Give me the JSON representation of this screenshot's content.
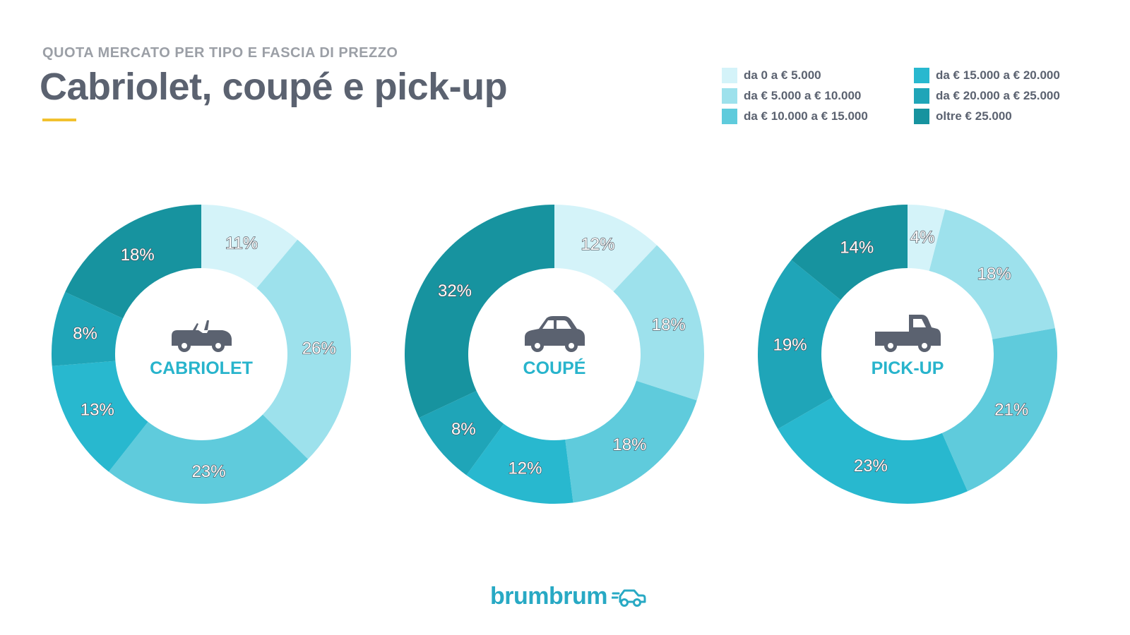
{
  "header": {
    "subtitle": "QUOTA MERCATO PER TIPO E FASCIA DI PREZZO",
    "title": "Cabriolet, coupé e pick-up"
  },
  "legend": [
    {
      "label": "da 0 a € 5.000",
      "color": "#d4f3f9"
    },
    {
      "label": "da € 5.000 a € 10.000",
      "color": "#9de1ec"
    },
    {
      "label": "da € 10.000 a € 15.000",
      "color": "#5fcbdc"
    },
    {
      "label": "da € 15.000 a € 20.000",
      "color": "#28b8cf"
    },
    {
      "label": "da € 20.000 a € 25.000",
      "color": "#1fa5b8"
    },
    {
      "label": "oltre € 25.000",
      "color": "#17939f"
    }
  ],
  "chart_data": [
    {
      "type": "pie",
      "title": "CABRIOLET",
      "icon": "convertible-car-icon",
      "categories": [
        "da 0 a € 5.000",
        "da € 5.000 a € 10.000",
        "da € 10.000 a € 15.000",
        "da € 15.000 a € 20.000",
        "da € 20.000 a € 25.000",
        "oltre € 25.000"
      ],
      "values": [
        11,
        26,
        23,
        13,
        8,
        18
      ],
      "labels": [
        "11%",
        "26%",
        "23%",
        "13%",
        "8%",
        "18%"
      ]
    },
    {
      "type": "pie",
      "title": "COUPÉ",
      "icon": "coupe-car-icon",
      "categories": [
        "da 0 a € 5.000",
        "da € 5.000 a € 10.000",
        "da € 10.000 a € 15.000",
        "da € 15.000 a € 20.000",
        "da € 20.000 a € 25.000",
        "oltre € 25.000"
      ],
      "values": [
        12,
        18,
        18,
        12,
        8,
        32
      ],
      "labels": [
        "12%",
        "18%",
        "18%",
        "12%",
        "8%",
        "32%"
      ]
    },
    {
      "type": "pie",
      "title": "PICK-UP",
      "icon": "pickup-truck-icon",
      "categories": [
        "da 0 a € 5.000",
        "da € 5.000 a € 10.000",
        "da € 10.000 a € 15.000",
        "da € 15.000 a € 20.000",
        "da € 20.000 a € 25.000",
        "oltre € 25.000"
      ],
      "values": [
        4,
        18,
        21,
        23,
        19,
        14
      ],
      "labels": [
        "4%",
        "18%",
        "21%",
        "23%",
        "19%",
        "14%"
      ]
    }
  ],
  "footer": {
    "brand": "brumbrum",
    "brand_color": "#28a9c4",
    "brand_icon": "car-logo-icon"
  },
  "colors": {
    "title": "#5b6270",
    "subtitle": "#9b9fa6",
    "accent": "#f2c12e",
    "center_label": "#28b4cc",
    "icon": "#5b6270"
  }
}
